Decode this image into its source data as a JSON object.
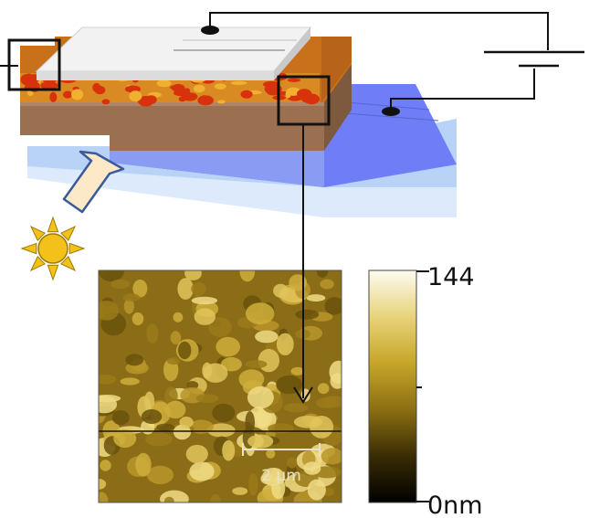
{
  "colorbar": {
    "max_label": "144",
    "min_label": "0nm",
    "gradient": [
      "#000000",
      "#3a2c05",
      "#8b6f12",
      "#c7a52a",
      "#e8d37a",
      "#fdfbf0"
    ]
  },
  "afm": {
    "scale_label": "2 µm",
    "base_color": "#8a6d16"
  },
  "colors": {
    "electrode": "#ececec",
    "active_layer": "#c05a10",
    "active_domain": "#d8320c",
    "transport_layer": "#9a7050",
    "substrate_blue": "#6f7ef6",
    "substrate_glass": "#cfe2fb",
    "sun": "#f2c21b",
    "arrow_fill": "#fde9c8",
    "arrow_stroke": "#3a5a9a"
  },
  "icons": {
    "sun": "sun-icon",
    "light_arrow": "incident-light-arrow-icon",
    "battery": "battery-icon"
  }
}
